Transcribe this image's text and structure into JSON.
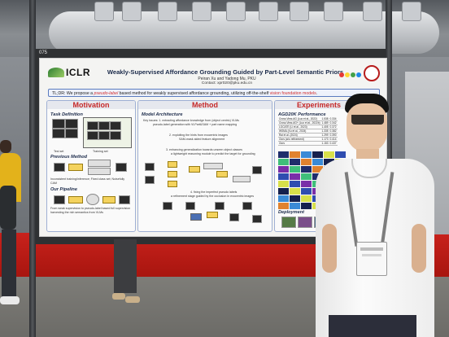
{
  "poster": {
    "booth_number": "075",
    "logo_text": "ICLR",
    "title": "Weakly-Supervised Affordance Grounding Guided by Part-Level Semantic Priors",
    "authors": "Peiran Xu and Yadong Mu, PKU",
    "contact": "Contact: xpr020@pku.edu.cn",
    "tldr_prefix": "TL;DR: We propose a ",
    "tldr_highlight": "pseudo-label",
    "tldr_middle": " based method for weakly supervised affordance grounding, utilizing off-the-shelf ",
    "tldr_highlight2": "vision foundation models",
    "tldr_suffix": ".",
    "motivation": {
      "heading": "Motivation",
      "task_definition": "Task Definition",
      "test_set": "Test set",
      "training_set": "Training set",
      "previous_method": "Previous Method",
      "previous_caption": "Inconsistent training/inference; Fixed class set; Noisefully CAM",
      "our_pipeline": "Our Pipeline",
      "pipeline_caption": "From weak supervision to pseudo-label based full supervision harvesting the rich semantics from VLMs"
    },
    "method": {
      "heading": "Method",
      "model_architecture": "Model Architecture",
      "step1": "Key issues: 1. extracting affordance knowledge from (object centric) VLMs",
      "step1b": "pseudo-label generation with VLPart&SAM + part name mapping",
      "step2": "2. exploiting the hints from exocentric images",
      "step2b": "SAM-mask aided feature alignment",
      "step3": "3. enhancing generalization towards unseen object classes",
      "step3b": "a lightweight reasoning module to predict the target for grounding",
      "step4": "4. fixing the imperfect pseudo labels",
      "step4b": "a refinement stage guided by the occlusion in exocentric images"
    },
    "experiments": {
      "heading": "Experiments",
      "agd20k": "AGD20K Performance",
      "deployment": "Deployment",
      "table_rows": [
        [
          "Cross-View-AG (Luo et al., 2022)",
          "1.538",
          "0.334"
        ],
        [
          "Cross-View-AG+ (Luo et al., 2022b)",
          "1.489",
          "0.342"
        ],
        [
          "LOCATE (Li et al., 2023)",
          "1.405",
          "0.372"
        ],
        [
          "WSMA (Xu et al., 2024)",
          "1.335",
          "0.382"
        ],
        [
          "Rai et al. (2024)",
          "1.299",
          "0.390"
        ],
        [
          "Ours (w/o refinement)",
          "1.173",
          "0.414"
        ],
        [
          "Ours",
          "1.153",
          "0.437"
        ]
      ]
    }
  },
  "scene": {
    "colors": {
      "accent_red": "#c62828",
      "title_navy": "#1b2a4a",
      "carpet": "#b81a14",
      "shirt": "#f7f7f7"
    }
  }
}
